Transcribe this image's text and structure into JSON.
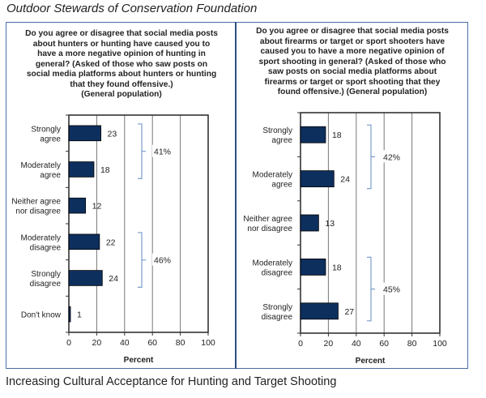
{
  "header": {
    "organization": "Outdoor Stewards of Conservation Foundation"
  },
  "caption": "Increasing Cultural Acceptance for Hunting and Target Shooting",
  "colors": {
    "bar": "#0d2f5e",
    "bracket": "#7a9ccc",
    "frame": "#4a6fa5",
    "grid": "#555555"
  },
  "chart_data": [
    {
      "type": "bar",
      "orientation": "horizontal",
      "title": "Do you agree or disagree that social media posts about hunters or hunting have caused you to have a more negative opinion of hunting in general? (Asked of those who saw posts on social media platforms about hunters or hunting that they found offensive.) (General population)",
      "title_lines": [
        "Do you agree or disagree that social media posts",
        "about hunters or hunting have caused you to",
        "have a more negative opinion of hunting in",
        "general? (Asked of those who saw posts on",
        "social media platforms about hunters or hunting",
        "that they found offensive.)",
        "(General population)"
      ],
      "categories": [
        [
          "Strongly",
          "agree"
        ],
        [
          "Moderately",
          "agree"
        ],
        [
          "Neither agree",
          "nor disagree"
        ],
        [
          "Moderately",
          "disagree"
        ],
        [
          "Strongly",
          "disagree"
        ],
        [
          "Don't know"
        ]
      ],
      "values": [
        23,
        18,
        12,
        22,
        24,
        1
      ],
      "value_labels": [
        "23",
        "18",
        "12",
        "22",
        "24",
        "1"
      ],
      "groups": [
        {
          "label": "41%",
          "from": 0,
          "to": 1
        },
        {
          "label": "46%",
          "from": 3,
          "to": 4
        }
      ],
      "xlabel": "Percent",
      "xlim": [
        0,
        100
      ],
      "xticks": [
        "0",
        "20",
        "40",
        "60",
        "80",
        "100"
      ],
      "grid": true
    },
    {
      "type": "bar",
      "orientation": "horizontal",
      "title": "Do you agree or disagree that social media posts about firearms or target or sport shooters have caused you to have a more negative opinion of sport shooting in general? (Asked of those who saw posts on social media platforms about firearms or target or sport shooting that they found offensive.) (General population)",
      "title_lines": [
        "Do you agree or disagree that social media posts",
        "about firearms or target or sport shooters have",
        "caused you to have a more negative opinion of",
        "sport shooting in general? (Asked of those who",
        "saw posts on social media platforms about",
        "firearms or target or sport shooting that they",
        "found offensive.) (General population)"
      ],
      "categories": [
        [
          "Strongly",
          "agree"
        ],
        [
          "Moderately",
          "agree"
        ],
        [
          "Neither agree",
          "nor disagree"
        ],
        [
          "Moderately",
          "disagree"
        ],
        [
          "Strongly",
          "disagree"
        ]
      ],
      "values": [
        18,
        24,
        13,
        18,
        27
      ],
      "value_labels": [
        "18",
        "24",
        "13",
        "18",
        "27"
      ],
      "groups": [
        {
          "label": "42%",
          "from": 0,
          "to": 1
        },
        {
          "label": "45%",
          "from": 3,
          "to": 4
        }
      ],
      "xlabel": "Percent",
      "xlim": [
        0,
        100
      ],
      "xticks": [
        "0",
        "20",
        "40",
        "60",
        "80",
        "100"
      ],
      "grid": true
    }
  ]
}
